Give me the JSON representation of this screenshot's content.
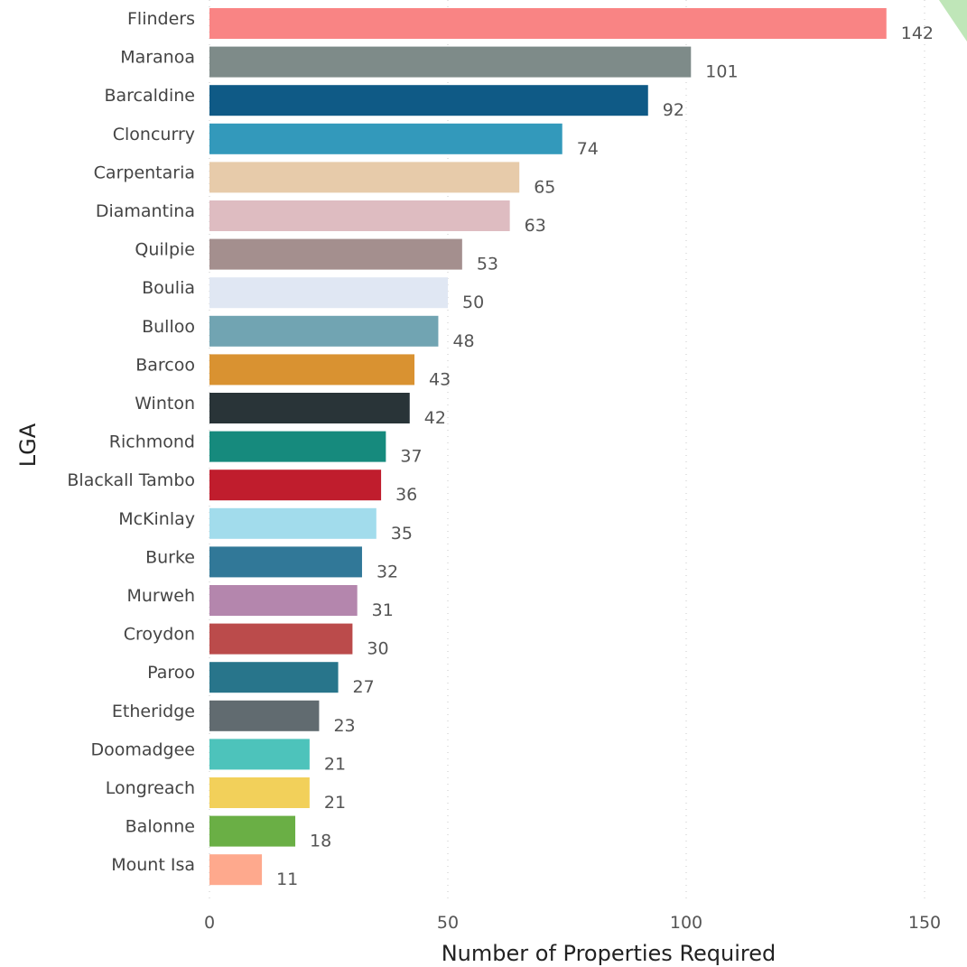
{
  "chart_data": {
    "type": "bar",
    "orientation": "horizontal",
    "xlabel": "Number of Properties Required",
    "ylabel": "LGA",
    "xlim": [
      0,
      150
    ],
    "xticks": [
      0,
      50,
      100,
      150
    ],
    "grid": "vertical dotted",
    "categories": [
      "Flinders",
      "Maranoa",
      "Barcaldine",
      "Cloncurry",
      "Carpentaria",
      "Diamantina",
      "Quilpie",
      "Boulia",
      "Bulloo",
      "Barcoo",
      "Winton",
      "Richmond",
      "Blackall Tambo",
      "McKinlay",
      "Burke",
      "Murweh",
      "Croydon",
      "Paroo",
      "Etheridge",
      "Doomadgee",
      "Longreach",
      "Balonne",
      "Mount Isa"
    ],
    "values": [
      142,
      101,
      92,
      74,
      65,
      63,
      53,
      50,
      48,
      43,
      42,
      37,
      36,
      35,
      32,
      31,
      30,
      27,
      23,
      21,
      21,
      18,
      11
    ],
    "colors": [
      "#f98484",
      "#7e8b89",
      "#0f5a86",
      "#3399bb",
      "#e7cbaa",
      "#debcc1",
      "#a48f8e",
      "#e0e7f3",
      "#71a4b2",
      "#d99231",
      "#293438",
      "#168a7d",
      "#c01d2d",
      "#a2dcec",
      "#317898",
      "#b486ad",
      "#bb4b4b",
      "#28758b",
      "#616b70",
      "#4dc3bb",
      "#f2d05a",
      "#6aaf45",
      "#fea98d"
    ]
  }
}
